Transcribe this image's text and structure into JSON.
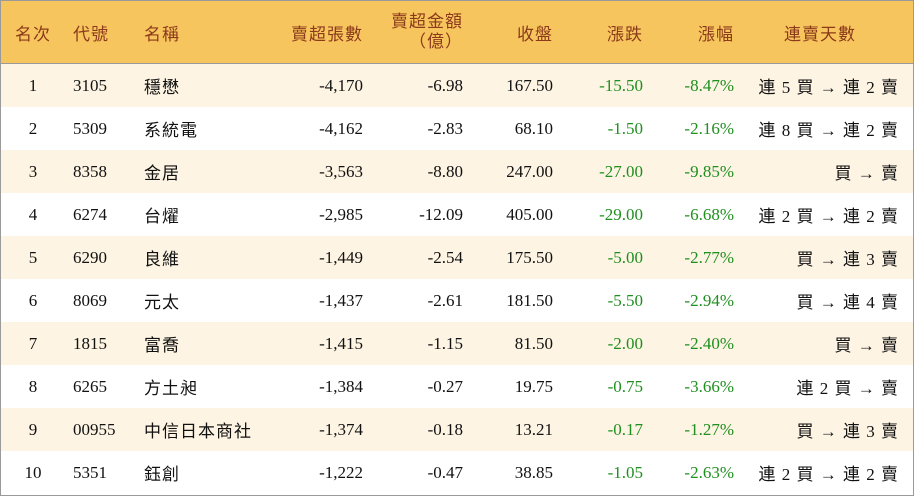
{
  "headers": {
    "rank": "名次",
    "code": "代號",
    "name": "名稱",
    "volume": "賣超張數",
    "amount_line1": "賣超金額",
    "amount_line2": "（億）",
    "close": "收盤",
    "change": "漲跌",
    "percent": "漲幅",
    "days": "連賣天數"
  },
  "rows": [
    {
      "rank": "1",
      "code": "3105",
      "name": "穩懋",
      "volume": "-4,170",
      "amount": "-6.98",
      "close": "167.50",
      "change": "-15.50",
      "percent": "-8.47%",
      "days": "連 5 買 → 連 2 賣"
    },
    {
      "rank": "2",
      "code": "5309",
      "name": "系統電",
      "volume": "-4,162",
      "amount": "-2.83",
      "close": "68.10",
      "change": "-1.50",
      "percent": "-2.16%",
      "days": "連 8 買 → 連 2 賣"
    },
    {
      "rank": "3",
      "code": "8358",
      "name": "金居",
      "volume": "-3,563",
      "amount": "-8.80",
      "close": "247.00",
      "change": "-27.00",
      "percent": "-9.85%",
      "days": "買 → 賣"
    },
    {
      "rank": "4",
      "code": "6274",
      "name": "台燿",
      "volume": "-2,985",
      "amount": "-12.09",
      "close": "405.00",
      "change": "-29.00",
      "percent": "-6.68%",
      "days": "連 2 買 → 連 2 賣"
    },
    {
      "rank": "5",
      "code": "6290",
      "name": "良維",
      "volume": "-1,449",
      "amount": "-2.54",
      "close": "175.50",
      "change": "-5.00",
      "percent": "-2.77%",
      "days": "買 → 連 3 賣"
    },
    {
      "rank": "6",
      "code": "8069",
      "name": "元太",
      "volume": "-1,437",
      "amount": "-2.61",
      "close": "181.50",
      "change": "-5.50",
      "percent": "-2.94%",
      "days": "買 → 連 4 賣"
    },
    {
      "rank": "7",
      "code": "1815",
      "name": "富喬",
      "volume": "-1,415",
      "amount": "-1.15",
      "close": "81.50",
      "change": "-2.00",
      "percent": "-2.40%",
      "days": "買 → 賣"
    },
    {
      "rank": "8",
      "code": "6265",
      "name": "方土昶",
      "volume": "-1,384",
      "amount": "-0.27",
      "close": "19.75",
      "change": "-0.75",
      "percent": "-3.66%",
      "days": "連 2 買 → 賣"
    },
    {
      "rank": "9",
      "code": "00955",
      "name": "中信日本商社",
      "volume": "-1,374",
      "amount": "-0.18",
      "close": "13.21",
      "change": "-0.17",
      "percent": "-1.27%",
      "days": "買 → 連 3 賣"
    },
    {
      "rank": "10",
      "code": "5351",
      "name": "鈺創",
      "volume": "-1,222",
      "amount": "-0.47",
      "close": "38.85",
      "change": "-1.05",
      "percent": "-2.63%",
      "days": "連 2 買 → 連 2 賣"
    }
  ],
  "colors": {
    "header_bg": "#f7c55e",
    "header_text": "#8b3a1a",
    "stripe_bg": "#fdf4e3",
    "negative_change": "#1f8f1f"
  }
}
